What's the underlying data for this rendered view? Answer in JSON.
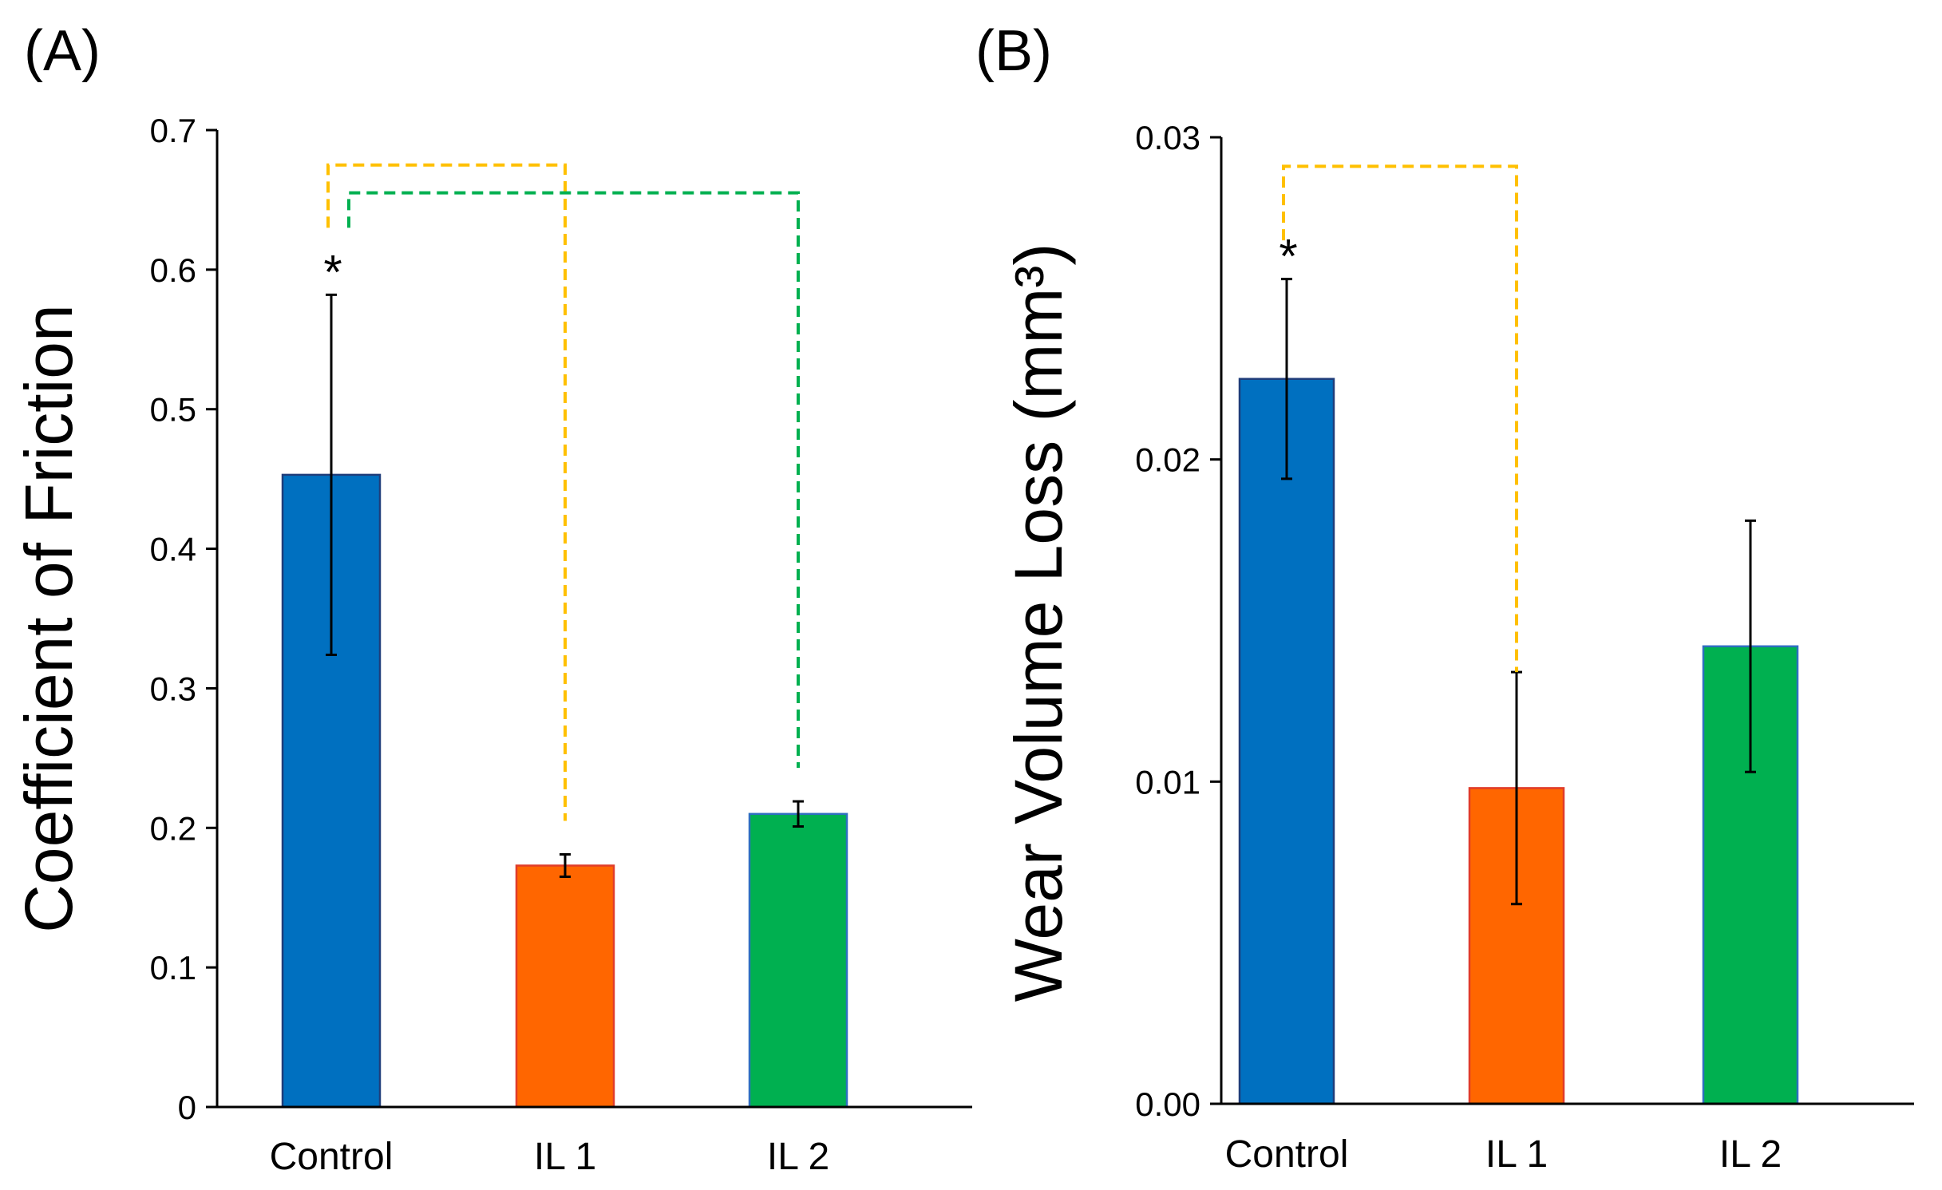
{
  "chart_data": [
    {
      "type": "bar",
      "panel_label": "(A)",
      "title": "",
      "xlabel": "",
      "ylabel": "Coefficient of Friction",
      "categories": [
        "Control",
        "IL 1",
        "IL 2"
      ],
      "values": [
        0.453,
        0.173,
        0.21
      ],
      "errors": [
        0.129,
        0.008,
        0.009
      ],
      "colors": [
        "#0070C0",
        "#FF6600",
        "#00B050"
      ],
      "edge_colors": [
        "#1F3D7A",
        "#E03C2A",
        "#2E6FBF"
      ],
      "ylim": [
        0,
        0.7
      ],
      "yticks": [
        "0",
        "0.1",
        "0.2",
        "0.3",
        "0.4",
        "0.5",
        "0.6",
        "0.7"
      ],
      "grid": false,
      "annotations": [
        {
          "text": "*",
          "category": "Control"
        }
      ],
      "significance": [
        {
          "from": "Control",
          "to": "IL 1",
          "color": "#FFC000",
          "level": 0.675,
          "from_y": 0.63,
          "to_y": 0.205
        },
        {
          "from": "Control",
          "to": "IL 2",
          "color": "#00B050",
          "level": 0.655,
          "from_y": 0.63,
          "to_y": 0.243
        }
      ]
    },
    {
      "type": "bar",
      "panel_label": "(B)",
      "title": "",
      "xlabel": "",
      "ylabel": "Wear Volume Loss (mm³)",
      "categories": [
        "Control",
        "IL 1",
        "IL 2"
      ],
      "values": [
        0.0225,
        0.0098,
        0.0142
      ],
      "errors": [
        0.0031,
        0.0036,
        0.0039
      ],
      "colors": [
        "#0070C0",
        "#FF6600",
        "#00B050"
      ],
      "edge_colors": [
        "#1F3D7A",
        "#E03C2A",
        "#2E6FBF"
      ],
      "ylim": [
        0,
        0.03
      ],
      "yticks": [
        "0.00",
        "0.01",
        "0.02",
        "0.03"
      ],
      "grid": false,
      "annotations": [
        {
          "text": "*",
          "category": "Control"
        }
      ],
      "significance": [
        {
          "from": "Control",
          "to": "IL 1",
          "color": "#FFC000",
          "level": 0.0291,
          "from_y": 0.0268,
          "to_y": 0.0134
        }
      ]
    }
  ]
}
